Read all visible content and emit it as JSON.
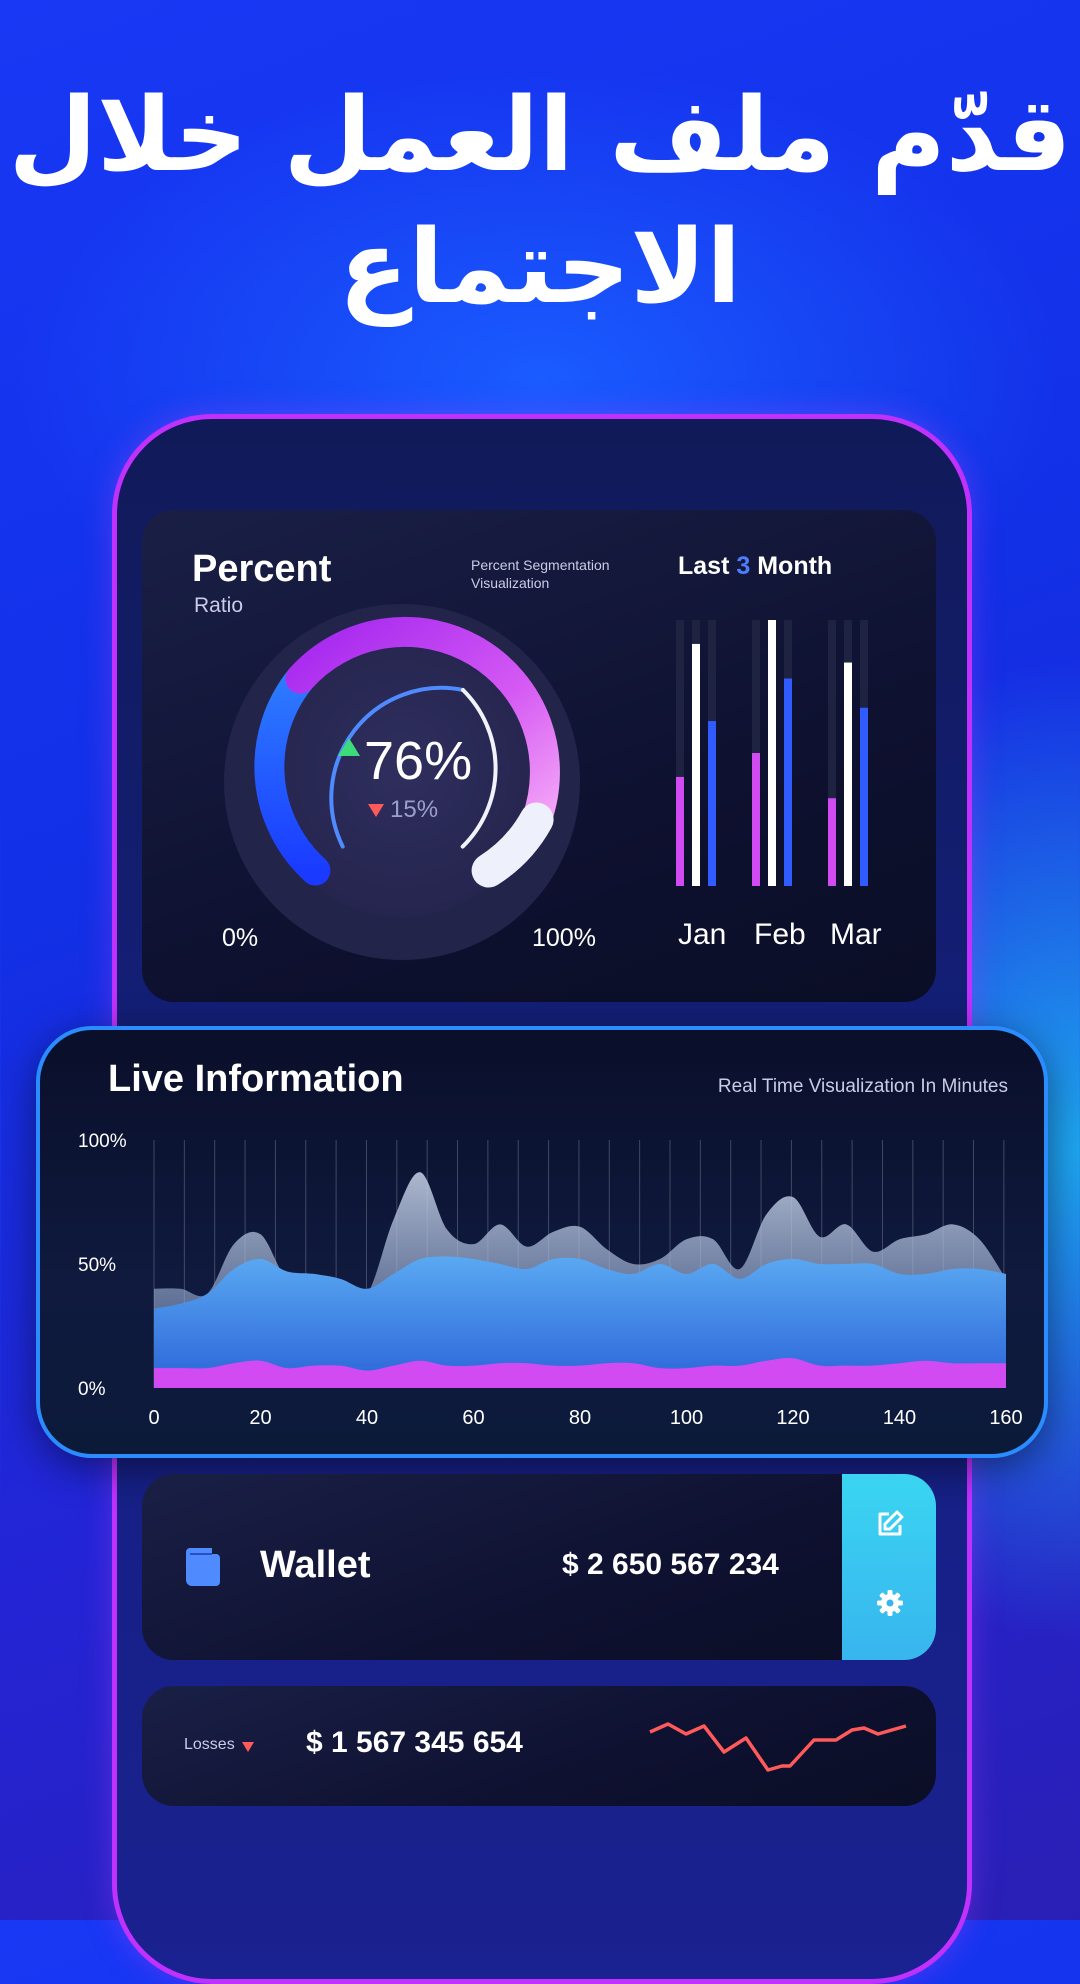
{
  "headline": "قدّم ملف العمل خلال الاجتماع",
  "percent_card": {
    "title": "Percent",
    "subtitle": "Ratio",
    "description_line1": "Percent Segmentation",
    "description_line2": "Visualization",
    "value": "76%",
    "change": "15%",
    "min_label": "0%",
    "max_label": "100%",
    "progress": 0.76
  },
  "month_card": {
    "title_prefix": "Last",
    "title_number": "3",
    "title_suffix": "Month",
    "months": [
      "Jan",
      "Feb",
      "Mar"
    ]
  },
  "live_card": {
    "title": "Live Information",
    "subtitle": "Real Time Visualization In Minutes"
  },
  "wallet": {
    "label": "Wallet",
    "amount": "$ 2 650 567 234",
    "icons": [
      "wallet-icon",
      "edit-icon",
      "gear-icon"
    ]
  },
  "losses": {
    "label": "Losses",
    "amount": "$ 1 567 345 654"
  },
  "colors": {
    "accent_blue": "#2a6bff",
    "accent_magenta": "#d24bf2",
    "accent_cyan": "#3ad5f2",
    "trend_red": "#ff5a5a",
    "up_green": "#3ddc7a"
  },
  "chart_data": [
    {
      "type": "bar",
      "categories": [
        "Jan",
        "Feb",
        "Mar"
      ],
      "series": [
        {
          "values": [
            0.41,
            0.5,
            0.33
          ]
        },
        {
          "values": [
            0.91,
            1.0,
            0.84
          ]
        },
        {
          "values": [
            0.62,
            0.78,
            0.67
          ]
        }
      ],
      "ylim": [
        0,
        1
      ]
    },
    {
      "type": "area",
      "x": [
        0,
        5,
        10,
        15,
        20,
        25,
        30,
        35,
        40,
        45,
        50,
        55,
        60,
        65,
        70,
        75,
        80,
        85,
        90,
        95,
        100,
        105,
        110,
        115,
        120,
        125,
        130,
        135,
        140,
        145,
        150,
        155,
        160
      ],
      "series": [
        {
          "values": [
            40,
            40,
            38,
            58,
            62,
            44,
            46,
            42,
            38,
            68,
            87,
            64,
            58,
            66,
            57,
            63,
            65,
            56,
            50,
            52,
            60,
            60,
            48,
            70,
            77,
            61,
            66,
            55,
            60,
            62,
            66,
            60,
            44
          ]
        },
        {
          "values": [
            32,
            34,
            38,
            48,
            52,
            47,
            46,
            44,
            40,
            46,
            52,
            53,
            52,
            50,
            48,
            52,
            52,
            48,
            46,
            50,
            46,
            50,
            44,
            50,
            52,
            50,
            50,
            50,
            46,
            46,
            48,
            48,
            46
          ]
        },
        {
          "values": [
            8,
            8,
            8,
            10,
            11,
            8,
            9,
            9,
            7,
            9,
            11,
            9,
            9,
            10,
            10,
            9,
            9,
            10,
            10,
            8,
            8,
            9,
            9,
            11,
            12,
            9,
            9,
            9,
            10,
            11,
            10,
            10,
            10
          ]
        }
      ],
      "xlim": [
        0,
        160
      ],
      "ylim": [
        0,
        100
      ],
      "xticks": [
        "0",
        "20",
        "40",
        "60",
        "80",
        "100",
        "120",
        "140",
        "160"
      ],
      "yticks": [
        "0%",
        "50%",
        "100%"
      ]
    }
  ]
}
